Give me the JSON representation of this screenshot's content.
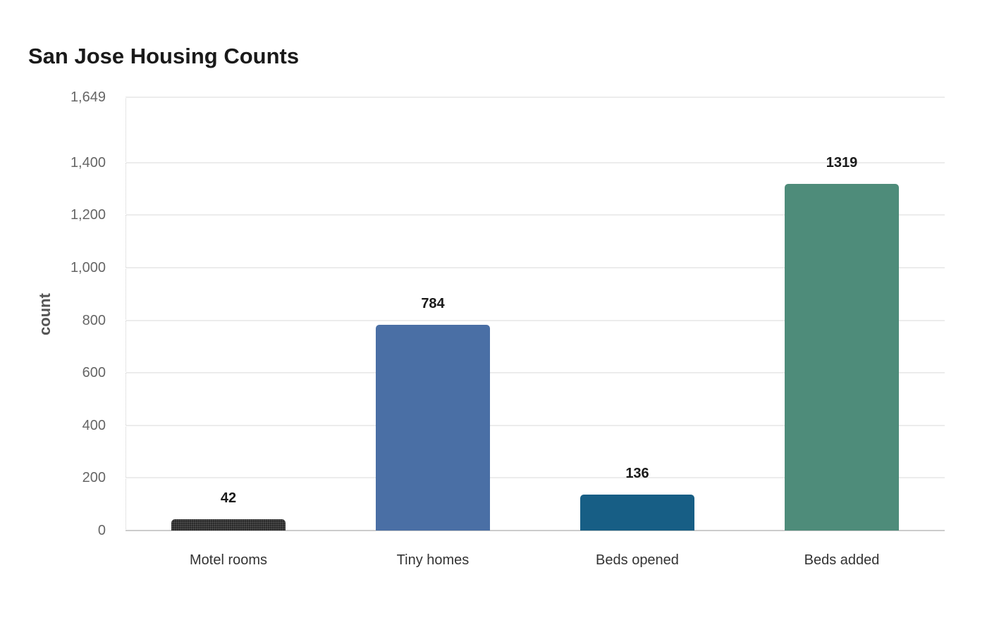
{
  "chart_data": {
    "type": "bar",
    "title": "San Jose Housing Counts",
    "xlabel": "",
    "ylabel": "count",
    "ylim": [
      0,
      1649
    ],
    "yticks": [
      "0",
      "200",
      "400",
      "600",
      "800",
      "1,000",
      "1,200",
      "1,400",
      "1,649"
    ],
    "ytick_values": [
      0,
      200,
      400,
      600,
      800,
      1000,
      1200,
      1400,
      1649
    ],
    "categories": [
      "Motel rooms",
      "Tiny homes",
      "Beds opened",
      "Beds added"
    ],
    "values": [
      42,
      784,
      136,
      1319
    ],
    "value_labels": [
      "42",
      "784",
      "136",
      "1319"
    ],
    "colors": [
      "#2b2b2b",
      "#4a6fa5",
      "#175e85",
      "#4e8c7a"
    ],
    "grid": true,
    "legend": "none"
  }
}
